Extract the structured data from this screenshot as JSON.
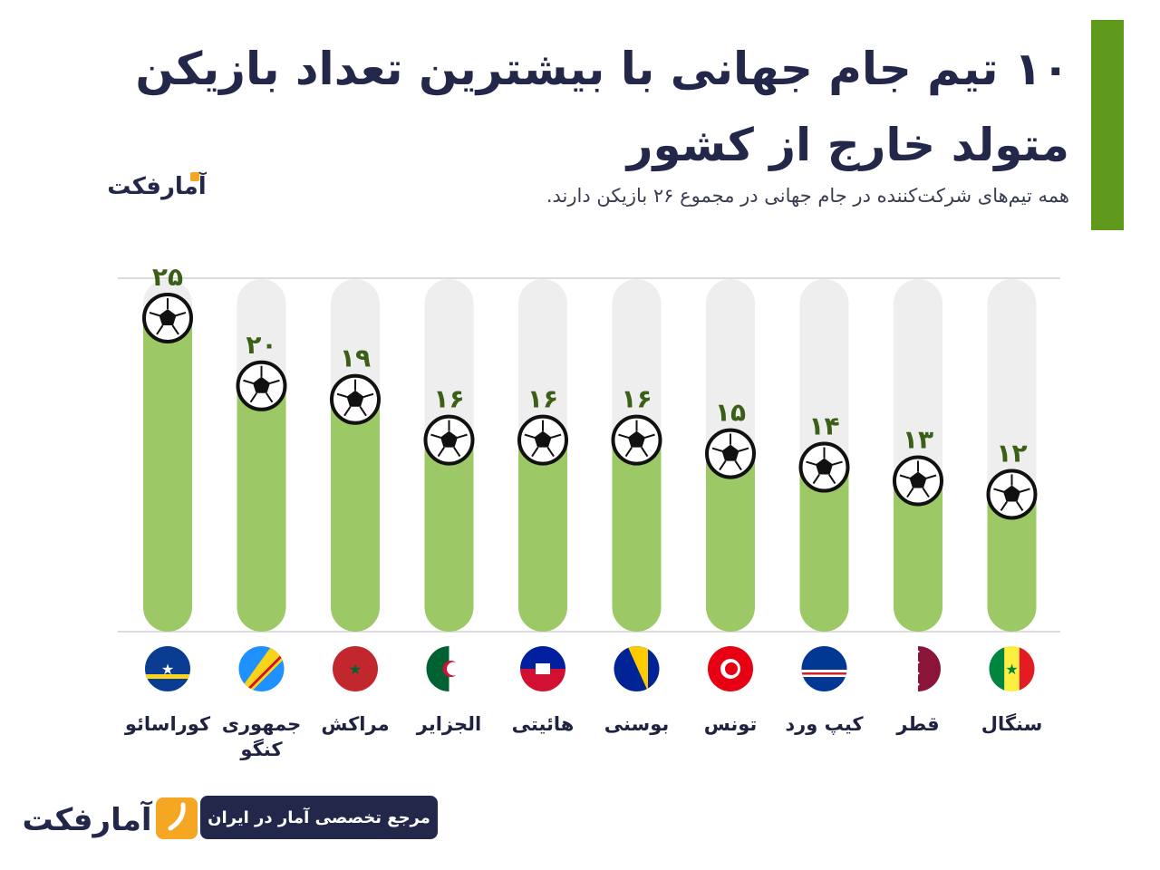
{
  "title": "۱۰ تیم جام جهانی با بیشترین تعداد بازیکن متولد خارج از کشور",
  "subtitle": "همه تیم‌های شرکت‌کننده در جام جهانی در مجموع ۲۶ بازیکن دارند.",
  "brand": "آمارفکت",
  "badge_text": "مرجع تخصصی آمار در ایران",
  "colors": {
    "accent_green": "#5f9a1d",
    "bar_green": "#9cc866",
    "bar_track": "#eeeeee",
    "value_text": "#3b5f17",
    "navy": "#23284a",
    "orange": "#f5a623"
  },
  "icons": [
    "soccer-ball-icon",
    "flag-icon",
    "logo-icon"
  ],
  "chart_data": {
    "type": "bar",
    "title": "۱۰ تیم جام جهانی با بیشترین تعداد بازیکن متولد خارج از کشور",
    "categories": [
      "کوراسائو",
      "جمهوری کنگو",
      "مراکش",
      "الجزایر",
      "هائیتی",
      "بوسنی",
      "تونس",
      "کیپ ورد",
      "قطر",
      "سنگال"
    ],
    "values": [
      25,
      20,
      19,
      16,
      16,
      16,
      15,
      14,
      13,
      12
    ],
    "value_labels": [
      "۲۵",
      "۲۰",
      "۱۹",
      "۱۶",
      "۱۶",
      "۱۶",
      "۱۵",
      "۱۴",
      "۱۳",
      "۱۲"
    ],
    "ylim": [
      0,
      26
    ],
    "xlabel": "",
    "ylabel": "",
    "grid": true,
    "legend": "none"
  }
}
